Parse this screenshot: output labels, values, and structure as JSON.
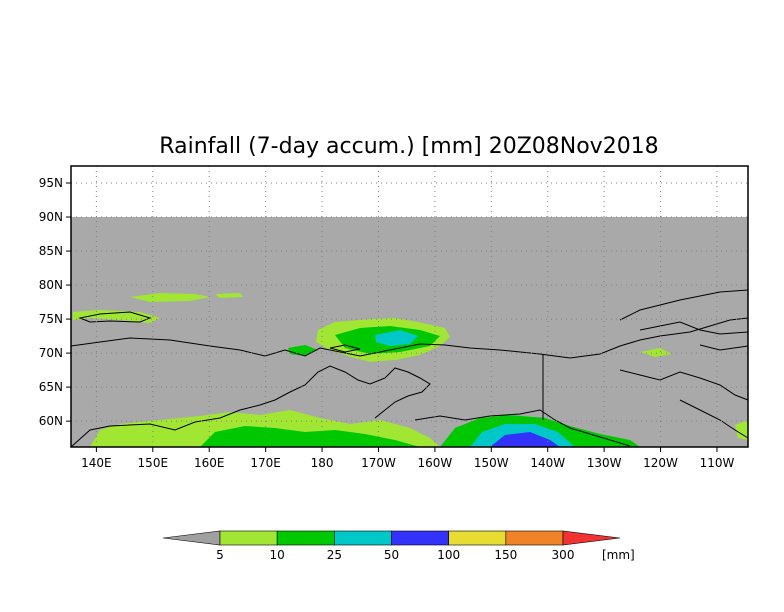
{
  "title": "Rainfall (7-day accum.) [mm] 20Z08Nov2018",
  "lat_ticks": [
    "95N",
    "90N",
    "85N",
    "80N",
    "75N",
    "70N",
    "65N",
    "60N"
  ],
  "lon_ticks": [
    "140E",
    "150E",
    "160E",
    "170E",
    "180",
    "170W",
    "160W",
    "150W",
    "140W",
    "130W",
    "120W",
    "110W"
  ],
  "colorbar": {
    "unit": "[mm]",
    "thresholds": [
      "5",
      "10",
      "25",
      "50",
      "100",
      "150",
      "300"
    ],
    "colors": [
      "#a0a0a0",
      "#a0e632",
      "#00c800",
      "#00c8c8",
      "#3232fa",
      "#e6dc32",
      "#f08228",
      "#f03232"
    ]
  },
  "colors": {
    "no_data": "#ffffff",
    "background": "#a9a9a9",
    "coastline": "#000000"
  }
}
